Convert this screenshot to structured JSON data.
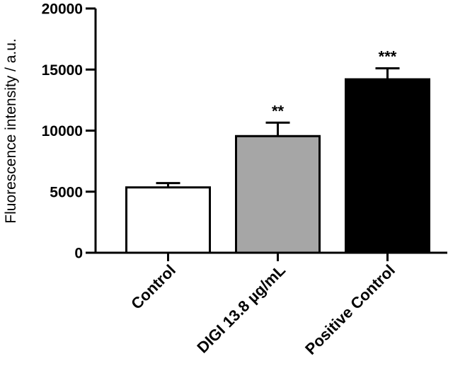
{
  "chart_data": {
    "type": "bar",
    "ylabel": "Fluorescence intensity / a.u.",
    "xlabel": "",
    "ylim": [
      0,
      20000
    ],
    "yticks": [
      0,
      5000,
      10000,
      15000,
      20000
    ],
    "categories": [
      "Control",
      "DIGI 13.8 µg/mL",
      "Positive Control"
    ],
    "values": [
      5350,
      9550,
      14200
    ],
    "errors": [
      350,
      1100,
      900
    ],
    "significance": [
      "",
      "**",
      "***"
    ],
    "colors": [
      "#ffffff",
      "#a6a6a6",
      "#000000"
    ],
    "grid": false,
    "legend": "none"
  }
}
